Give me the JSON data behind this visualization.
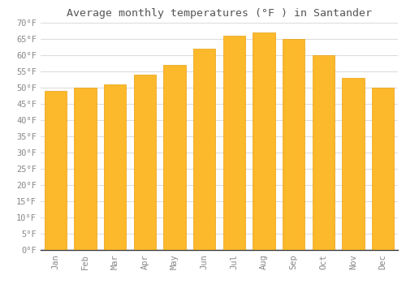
{
  "title": "Average monthly temperatures (°F ) in Santander",
  "months": [
    "Jan",
    "Feb",
    "Mar",
    "Apr",
    "May",
    "Jun",
    "Jul",
    "Aug",
    "Sep",
    "Oct",
    "Nov",
    "Dec"
  ],
  "values": [
    49,
    50,
    51,
    54,
    57,
    62,
    66,
    67,
    65,
    60,
    53,
    50
  ],
  "bar_color": "#FDB92C",
  "bar_edge_color": "#E8A010",
  "ylim": [
    0,
    70
  ],
  "ytick_step": 5,
  "background_color": "#FFFFFF",
  "grid_color": "#DDDDDD",
  "title_fontsize": 9.5,
  "tick_fontsize": 7.5
}
